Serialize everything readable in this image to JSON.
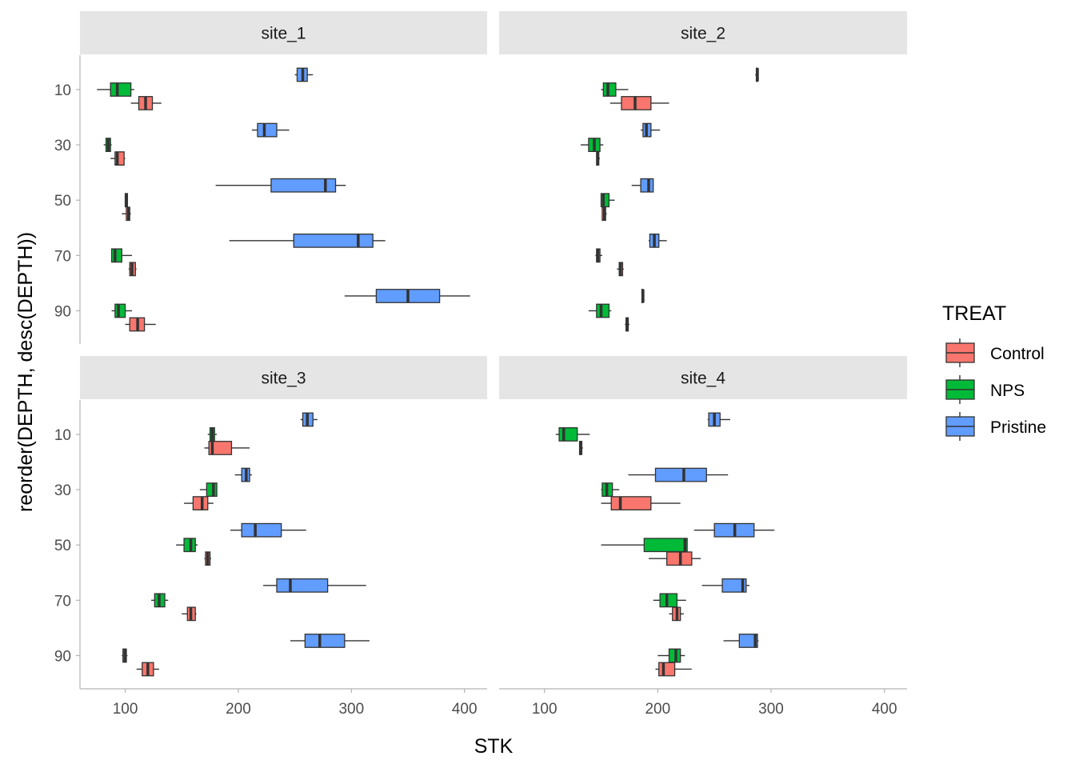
{
  "chart_data": {
    "type": "boxplot",
    "orientation": "horizontal",
    "xlabel": "STK",
    "ylabel": "reorder(DEPTH, desc(DEPTH))",
    "xlim": [
      60,
      420
    ],
    "x_ticks": [
      100,
      200,
      300,
      400
    ],
    "depths": [
      10,
      30,
      50,
      70,
      90
    ],
    "legend": {
      "title": "TREAT",
      "placement": "right",
      "entries": [
        {
          "name": "Control",
          "color": "#F8766D"
        },
        {
          "name": "NPS",
          "color": "#00BA38"
        },
        {
          "name": "Pristine",
          "color": "#619CFF"
        }
      ]
    },
    "facets": [
      {
        "label": "site_1",
        "boxes": [
          {
            "depth": 10,
            "treat": "Pristine",
            "min": 250,
            "q1": 252,
            "median": 257,
            "q3": 261,
            "max": 266
          },
          {
            "depth": 10,
            "treat": "NPS",
            "min": 75,
            "q1": 87,
            "median": 93,
            "q3": 105,
            "max": 108
          },
          {
            "depth": 10,
            "treat": "Control",
            "min": 105,
            "q1": 112,
            "median": 118,
            "q3": 124,
            "max": 132
          },
          {
            "depth": 30,
            "treat": "Pristine",
            "min": 212,
            "q1": 217,
            "median": 223,
            "q3": 234,
            "max": 245
          },
          {
            "depth": 30,
            "treat": "NPS",
            "min": 81,
            "q1": 83,
            "median": 85,
            "q3": 87,
            "max": 88
          },
          {
            "depth": 30,
            "treat": "Control",
            "min": 87,
            "q1": 91,
            "median": 93,
            "q3": 99,
            "max": 100
          },
          {
            "depth": 50,
            "treat": "Pristine",
            "min": 180,
            "q1": 229,
            "median": 277,
            "q3": 286,
            "max": 295
          },
          {
            "depth": 50,
            "treat": "NPS",
            "min": 100,
            "q1": 100,
            "median": 101,
            "q3": 102,
            "max": 102
          },
          {
            "depth": 50,
            "treat": "Control",
            "min": 97,
            "q1": 101,
            "median": 103,
            "q3": 104,
            "max": 105
          },
          {
            "depth": 70,
            "treat": "Pristine",
            "min": 192,
            "q1": 249,
            "median": 306,
            "q3": 319,
            "max": 330
          },
          {
            "depth": 70,
            "treat": "NPS",
            "min": 88,
            "q1": 88,
            "median": 91,
            "q3": 97,
            "max": 106
          },
          {
            "depth": 70,
            "treat": "Control",
            "min": 103,
            "q1": 104,
            "median": 106,
            "q3": 109,
            "max": 110
          },
          {
            "depth": 90,
            "treat": "Pristine",
            "min": 294,
            "q1": 322,
            "median": 350,
            "q3": 378,
            "max": 405
          },
          {
            "depth": 90,
            "treat": "NPS",
            "min": 88,
            "q1": 91,
            "median": 94,
            "q3": 100,
            "max": 106
          },
          {
            "depth": 90,
            "treat": "Control",
            "min": 100,
            "q1": 104,
            "median": 111,
            "q3": 117,
            "max": 127
          }
        ]
      },
      {
        "label": "site_2",
        "boxes": [
          {
            "depth": 10,
            "treat": "Pristine",
            "min": 286,
            "q1": 287,
            "median": 288,
            "q3": 288,
            "max": 289
          },
          {
            "depth": 10,
            "treat": "NPS",
            "min": 150,
            "q1": 152,
            "median": 156,
            "q3": 163,
            "max": 174
          },
          {
            "depth": 10,
            "treat": "Control",
            "min": 158,
            "q1": 168,
            "median": 180,
            "q3": 194,
            "max": 210
          },
          {
            "depth": 30,
            "treat": "Pristine",
            "min": 185,
            "q1": 187,
            "median": 190,
            "q3": 194,
            "max": 202
          },
          {
            "depth": 30,
            "treat": "NPS",
            "min": 132,
            "q1": 139,
            "median": 144,
            "q3": 149,
            "max": 152
          },
          {
            "depth": 30,
            "treat": "Control",
            "min": 146,
            "q1": 146,
            "median": 147,
            "q3": 148,
            "max": 149
          },
          {
            "depth": 50,
            "treat": "Pristine",
            "min": 177,
            "q1": 185,
            "median": 192,
            "q3": 196,
            "max": 196
          },
          {
            "depth": 50,
            "treat": "NPS",
            "min": 150,
            "q1": 150,
            "median": 152,
            "q3": 157,
            "max": 162
          },
          {
            "depth": 50,
            "treat": "Control",
            "min": 151,
            "q1": 151,
            "median": 153,
            "q3": 154,
            "max": 155
          },
          {
            "depth": 70,
            "treat": "Pristine",
            "min": 192,
            "q1": 193,
            "median": 197,
            "q3": 201,
            "max": 208
          },
          {
            "depth": 70,
            "treat": "NPS",
            "min": 145,
            "q1": 146,
            "median": 147,
            "q3": 149,
            "max": 151
          },
          {
            "depth": 70,
            "treat": "Control",
            "min": 164,
            "q1": 166,
            "median": 167,
            "q3": 169,
            "max": 170
          },
          {
            "depth": 90,
            "treat": "Pristine",
            "min": 186,
            "q1": 186,
            "median": 187,
            "q3": 187,
            "max": 188
          },
          {
            "depth": 90,
            "treat": "NPS",
            "min": 139,
            "q1": 146,
            "median": 150,
            "q3": 157,
            "max": 159
          },
          {
            "depth": 90,
            "treat": "Control",
            "min": 171,
            "q1": 172,
            "median": 173,
            "q3": 174,
            "max": 175
          }
        ]
      },
      {
        "label": "site_3",
        "boxes": [
          {
            "depth": 10,
            "treat": "Pristine",
            "min": 255,
            "q1": 257,
            "median": 261,
            "q3": 266,
            "max": 270
          },
          {
            "depth": 10,
            "treat": "NPS",
            "min": 173,
            "q1": 175,
            "median": 177,
            "q3": 179,
            "max": 181
          },
          {
            "depth": 10,
            "treat": "Control",
            "min": 170,
            "q1": 174,
            "median": 177,
            "q3": 194,
            "max": 210
          },
          {
            "depth": 30,
            "treat": "Pristine",
            "min": 197,
            "q1": 203,
            "median": 207,
            "q3": 210,
            "max": 212
          },
          {
            "depth": 30,
            "treat": "NPS",
            "min": 166,
            "q1": 172,
            "median": 178,
            "q3": 181,
            "max": 181
          },
          {
            "depth": 30,
            "treat": "Control",
            "min": 152,
            "q1": 160,
            "median": 168,
            "q3": 173,
            "max": 178
          },
          {
            "depth": 50,
            "treat": "Pristine",
            "min": 193,
            "q1": 203,
            "median": 215,
            "q3": 238,
            "max": 260
          },
          {
            "depth": 50,
            "treat": "NPS",
            "min": 145,
            "q1": 152,
            "median": 158,
            "q3": 162,
            "max": 164
          },
          {
            "depth": 50,
            "treat": "Control",
            "min": 170,
            "q1": 171,
            "median": 173,
            "q3": 175,
            "max": 176
          },
          {
            "depth": 70,
            "treat": "Pristine",
            "min": 222,
            "q1": 234,
            "median": 246,
            "q3": 279,
            "max": 313
          },
          {
            "depth": 70,
            "treat": "NPS",
            "min": 123,
            "q1": 126,
            "median": 130,
            "q3": 135,
            "max": 138
          },
          {
            "depth": 70,
            "treat": "Control",
            "min": 150,
            "q1": 155,
            "median": 158,
            "q3": 162,
            "max": 163
          },
          {
            "depth": 90,
            "treat": "Pristine",
            "min": 246,
            "q1": 259,
            "median": 272,
            "q3": 294,
            "max": 316
          },
          {
            "depth": 90,
            "treat": "NPS",
            "min": 97,
            "q1": 98,
            "median": 100,
            "q3": 101,
            "max": 102
          },
          {
            "depth": 90,
            "treat": "Control",
            "min": 110,
            "q1": 115,
            "median": 120,
            "q3": 125,
            "max": 130
          }
        ]
      },
      {
        "label": "site_4",
        "boxes": [
          {
            "depth": 10,
            "treat": "Pristine",
            "min": 244,
            "q1": 245,
            "median": 250,
            "q3": 255,
            "max": 264
          },
          {
            "depth": 10,
            "treat": "NPS",
            "min": 110,
            "q1": 113,
            "median": 117,
            "q3": 129,
            "max": 140
          },
          {
            "depth": 10,
            "treat": "Control",
            "min": 131,
            "q1": 131,
            "median": 132,
            "q3": 133,
            "max": 134
          },
          {
            "depth": 30,
            "treat": "Pristine",
            "min": 174,
            "q1": 198,
            "median": 223,
            "q3": 243,
            "max": 262
          },
          {
            "depth": 30,
            "treat": "NPS",
            "min": 150,
            "q1": 151,
            "median": 155,
            "q3": 160,
            "max": 166
          },
          {
            "depth": 30,
            "treat": "Control",
            "min": 150,
            "q1": 159,
            "median": 167,
            "q3": 194,
            "max": 220
          },
          {
            "depth": 50,
            "treat": "Pristine",
            "min": 232,
            "q1": 250,
            "median": 268,
            "q3": 285,
            "max": 303
          },
          {
            "depth": 50,
            "treat": "NPS",
            "min": 150,
            "q1": 188,
            "median": 224,
            "q3": 226,
            "max": 226
          },
          {
            "depth": 50,
            "treat": "Control",
            "min": 192,
            "q1": 208,
            "median": 220,
            "q3": 230,
            "max": 238
          },
          {
            "depth": 70,
            "treat": "Pristine",
            "min": 239,
            "q1": 257,
            "median": 275,
            "q3": 278,
            "max": 281
          },
          {
            "depth": 70,
            "treat": "NPS",
            "min": 196,
            "q1": 202,
            "median": 208,
            "q3": 217,
            "max": 225
          },
          {
            "depth": 70,
            "treat": "Control",
            "min": 210,
            "q1": 213,
            "median": 217,
            "q3": 220,
            "max": 223
          },
          {
            "depth": 90,
            "treat": "Pristine",
            "min": 258,
            "q1": 272,
            "median": 286,
            "q3": 288,
            "max": 289
          },
          {
            "depth": 90,
            "treat": "NPS",
            "min": 200,
            "q1": 210,
            "median": 216,
            "q3": 220,
            "max": 224
          },
          {
            "depth": 90,
            "treat": "Control",
            "min": 198,
            "q1": 201,
            "median": 205,
            "q3": 215,
            "max": 230
          }
        ]
      }
    ]
  }
}
